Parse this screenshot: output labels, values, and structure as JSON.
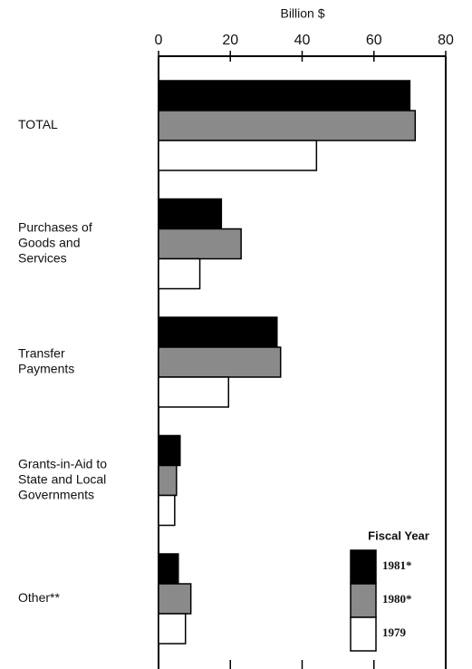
{
  "chart_data": {
    "type": "bar",
    "orientation": "horizontal",
    "axis_label": "Billion $",
    "categories": [
      [
        "TOTAL"
      ],
      [
        "Purchases of",
        "Goods and",
        "Services"
      ],
      [
        "Transfer",
        "Payments"
      ],
      [
        "Grants-in-Aid to",
        "State and Local",
        "Governments"
      ],
      [
        "Other**"
      ]
    ],
    "series": [
      {
        "name": "1981*",
        "color": "#000000",
        "values": [
          70,
          17.5,
          33,
          6,
          5.5
        ]
      },
      {
        "name": "1980*",
        "color": "#8a8a8a",
        "values": [
          71.5,
          23,
          34,
          5,
          9
        ]
      },
      {
        "name": "1979",
        "color": "#ffffff",
        "values": [
          44,
          11.5,
          19.5,
          4.5,
          7.5
        ]
      }
    ],
    "legend_title": "Fiscal Year",
    "xlim": [
      0,
      80
    ],
    "xticks": [
      0,
      20,
      40,
      60,
      80
    ]
  }
}
